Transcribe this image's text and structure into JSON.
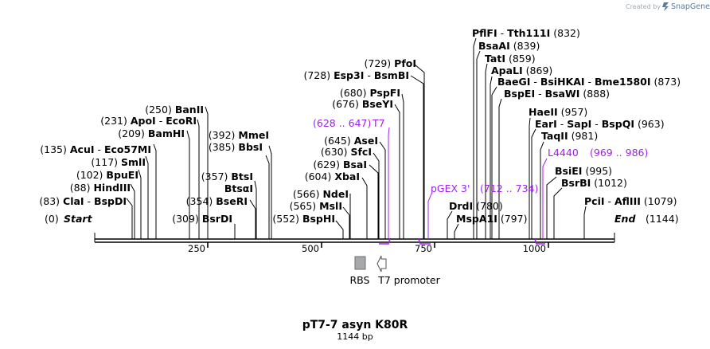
{
  "watermark": {
    "prefix": "Created by",
    "brand": "SnapGene"
  },
  "plasmid": {
    "name": "pT7-7 asyn K80R",
    "length_label": "1144 bp",
    "length_bp": 1144
  },
  "ruler": {
    "ticks": [
      {
        "bp": 250,
        "label": "250"
      },
      {
        "bp": 500,
        "label": "500"
      },
      {
        "bp": 750,
        "label": "750"
      },
      {
        "bp": 1000,
        "label": "1000"
      }
    ]
  },
  "ends": [
    {
      "id": "start",
      "pos": "(0)",
      "name": "Start"
    },
    {
      "id": "end",
      "name": "End",
      "pos": "(1144)"
    }
  ],
  "enzymes": [
    {
      "id": "clai",
      "pos": "(83)",
      "names": [
        "ClaI",
        "BspDI"
      ],
      "bp": 83
    },
    {
      "id": "hindiii",
      "pos": "(88)",
      "names": [
        "HindIII"
      ],
      "bp": 88
    },
    {
      "id": "bpuei",
      "pos": "(102)",
      "names": [
        "BpuEI"
      ],
      "bp": 102
    },
    {
      "id": "smli",
      "pos": "(117)",
      "names": [
        "SmlI"
      ],
      "bp": 117
    },
    {
      "id": "acui",
      "pos": "(135)",
      "names": [
        "AcuI",
        "Eco57MI"
      ],
      "bp": 135
    },
    {
      "id": "bamhi",
      "pos": "(209)",
      "names": [
        "BamHI"
      ],
      "bp": 209
    },
    {
      "id": "apoi",
      "pos": "(231)",
      "names": [
        "ApoI",
        "EcoRI"
      ],
      "bp": 231
    },
    {
      "id": "banii",
      "pos": "(250)",
      "names": [
        "BanII"
      ],
      "bp": 250
    },
    {
      "id": "bsrdi",
      "pos": "(309)",
      "names": [
        "BsrDI"
      ],
      "bp": 309
    },
    {
      "id": "bseri",
      "pos": "(354)",
      "names": [
        "BseRI"
      ],
      "bp": 354
    },
    {
      "id": "btsai",
      "names": [
        "BtsαI"
      ],
      "bp": 357
    },
    {
      "id": "btsi",
      "pos": "(357)",
      "names": [
        "BtsI"
      ],
      "bp": 357
    },
    {
      "id": "bbsi",
      "pos": "(385)",
      "names": [
        "BbsI"
      ],
      "bp": 385
    },
    {
      "id": "mmei",
      "pos": "(392)",
      "names": [
        "MmeI"
      ],
      "bp": 392
    },
    {
      "id": "bsphi",
      "pos": "(552)",
      "names": [
        "BspHI"
      ],
      "bp": 552
    },
    {
      "id": "msli",
      "pos": "(565)",
      "names": [
        "MslI"
      ],
      "bp": 565
    },
    {
      "id": "ndei",
      "pos": "(566)",
      "names": [
        "NdeI"
      ],
      "bp": 566
    },
    {
      "id": "xbai",
      "pos": "(604)",
      "names": [
        "XbaI"
      ],
      "bp": 604
    },
    {
      "id": "bsai",
      "pos": "(629)",
      "names": [
        "BsaI"
      ],
      "bp": 629
    },
    {
      "id": "sfci",
      "pos": "(630)",
      "names": [
        "SfcI"
      ],
      "bp": 630
    },
    {
      "id": "asei",
      "pos": "(645)",
      "names": [
        "AseI"
      ],
      "bp": 645
    },
    {
      "id": "bseyi",
      "pos": "(676)",
      "names": [
        "BseYI"
      ],
      "bp": 676
    },
    {
      "id": "pspfi",
      "pos": "(680)",
      "names": [
        "PspFI"
      ],
      "bp": 680
    },
    {
      "id": "esp3i",
      "pos": "(728)",
      "names": [
        "Esp3I",
        "BsmBI"
      ],
      "bp": 728
    },
    {
      "id": "pfoi",
      "pos": "(729)",
      "names": [
        "PfoI"
      ],
      "bp": 729
    },
    {
      "id": "drdi",
      "names": [
        "DrdI"
      ],
      "pos": "(780)",
      "bp": 780
    },
    {
      "id": "mspa1i",
      "names": [
        "MspA1I"
      ],
      "pos": "(797)",
      "bp": 797
    },
    {
      "id": "pflfi",
      "names": [
        "PflFI",
        "Tth111I"
      ],
      "pos": "(832)",
      "bp": 832
    },
    {
      "id": "bsaai",
      "names": [
        "BsaAI"
      ],
      "pos": "(839)",
      "bp": 839
    },
    {
      "id": "tati",
      "names": [
        "TatI"
      ],
      "pos": "(859)",
      "bp": 859
    },
    {
      "id": "apali",
      "names": [
        "ApaLI"
      ],
      "pos": "(869)",
      "bp": 869
    },
    {
      "id": "baegi",
      "names": [
        "BaeGI",
        "BsiHKAI",
        "Bme1580I"
      ],
      "pos": "(873)",
      "bp": 873
    },
    {
      "id": "bspei",
      "names": [
        "BspEI",
        "BsaWI"
      ],
      "pos": "(888)",
      "bp": 888
    },
    {
      "id": "haeii",
      "names": [
        "HaeII"
      ],
      "pos": "(957)",
      "bp": 957
    },
    {
      "id": "eari",
      "names": [
        "EarI",
        "SapI",
        "BspQI"
      ],
      "pos": "(963)",
      "bp": 963
    },
    {
      "id": "taqii",
      "names": [
        "TaqII"
      ],
      "pos": "(981)",
      "bp": 981
    },
    {
      "id": "bsiei",
      "names": [
        "BsiEI"
      ],
      "pos": "(995)",
      "bp": 995
    },
    {
      "id": "bsrbi",
      "names": [
        "BsrBI"
      ],
      "pos": "(1012)",
      "bp": 1012
    },
    {
      "id": "pcii",
      "names": [
        "PciI",
        "AflIII"
      ],
      "pos": "(1079)",
      "bp": 1079
    }
  ],
  "primers": [
    {
      "id": "t7",
      "range": "(628 .. 647)",
      "name": "T7",
      "start": 628,
      "end": 647
    },
    {
      "id": "pgex3",
      "name": "pGEX 3'",
      "range": "(712 .. 734)",
      "start": 712,
      "end": 734
    },
    {
      "id": "l4440",
      "name": "L4440",
      "range": "(969 .. 986)",
      "start": 969,
      "end": 986
    }
  ],
  "features": [
    {
      "id": "rbs",
      "label": "RBS"
    },
    {
      "id": "t7promoter",
      "label": "T7 promoter"
    }
  ],
  "colors": {
    "primer": "#a020f0",
    "rbs_fill": "#a7a8aa",
    "line": "#000000",
    "watermark": "#a0a8b0",
    "brand": "#5a7a9a"
  }
}
